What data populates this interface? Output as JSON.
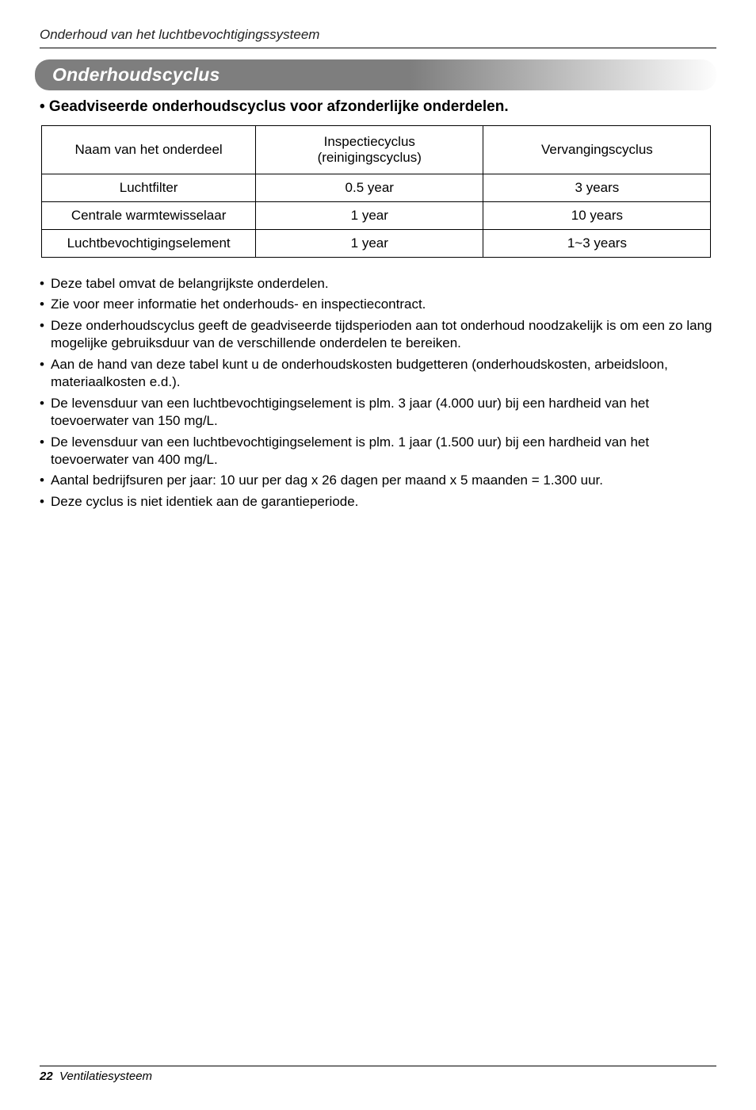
{
  "header": {
    "running_head": "Onderhoud van het luchtbevochtigingssysteem"
  },
  "section": {
    "title": "Onderhoudscyclus",
    "subhead": "• Geadviseerde onderhoudscyclus voor afzonderlijke onderdelen."
  },
  "table": {
    "columns": [
      "Naam van het onderdeel",
      "Inspectiecyclus\n(reinigingscyclus)",
      "Vervangingscyclus"
    ],
    "col_widths_pct": [
      32,
      34,
      34
    ],
    "rows": [
      [
        "Luchtfilter",
        "0.5 year",
        "3 years"
      ],
      [
        "Centrale warmtewisselaar",
        "1 year",
        "10 years"
      ],
      [
        "Luchtbevochtigingselement",
        "1 year",
        "1~3 years"
      ]
    ],
    "font_size_pt": 13,
    "border_color": "#000000",
    "text_align": "center"
  },
  "notes": [
    "Deze tabel omvat de belangrijkste onderdelen.",
    "Zie voor meer informatie het onderhouds- en inspectiecontract.",
    "Deze onderhoudscyclus geeft de geadviseerde tijdsperioden aan tot onderhoud noodzakelijk is om een zo lang mogelijke gebruiksduur van de verschillende onderdelen te bereiken.",
    "Aan de hand van deze tabel kunt u de onderhoudskosten budgetteren (onderhoudskosten, arbeidsloon, materiaalkosten e.d.).",
    "De levensduur van een luchtbevochtigingselement is plm. 3 jaar (4.000 uur) bij een hardheid van het toevoerwater van 150 mg/L.",
    "De levensduur van een luchtbevochtigingselement is plm. 1 jaar (1.500 uur) bij een hardheid van het toevoerwater van 400 mg/L.",
    "Aantal bedrijfsuren per jaar: 10 uur per dag x 26 dagen per maand x 5 maanden = 1.300 uur.",
    "Deze cyclus is niet identiek aan de garantieperiode."
  ],
  "footer": {
    "page_number": "22",
    "doc_title": "Ventilatiesysteem"
  },
  "styling": {
    "page_bg": "#ffffff",
    "text_color": "#000000",
    "pill_gradient_from": "#7e7e7e",
    "pill_gradient_to": "#fdfdfd",
    "pill_text_color": "#ffffff",
    "rule_color": "#000000",
    "body_font_size_pt": 13,
    "heading_font_size_pt": 17
  }
}
